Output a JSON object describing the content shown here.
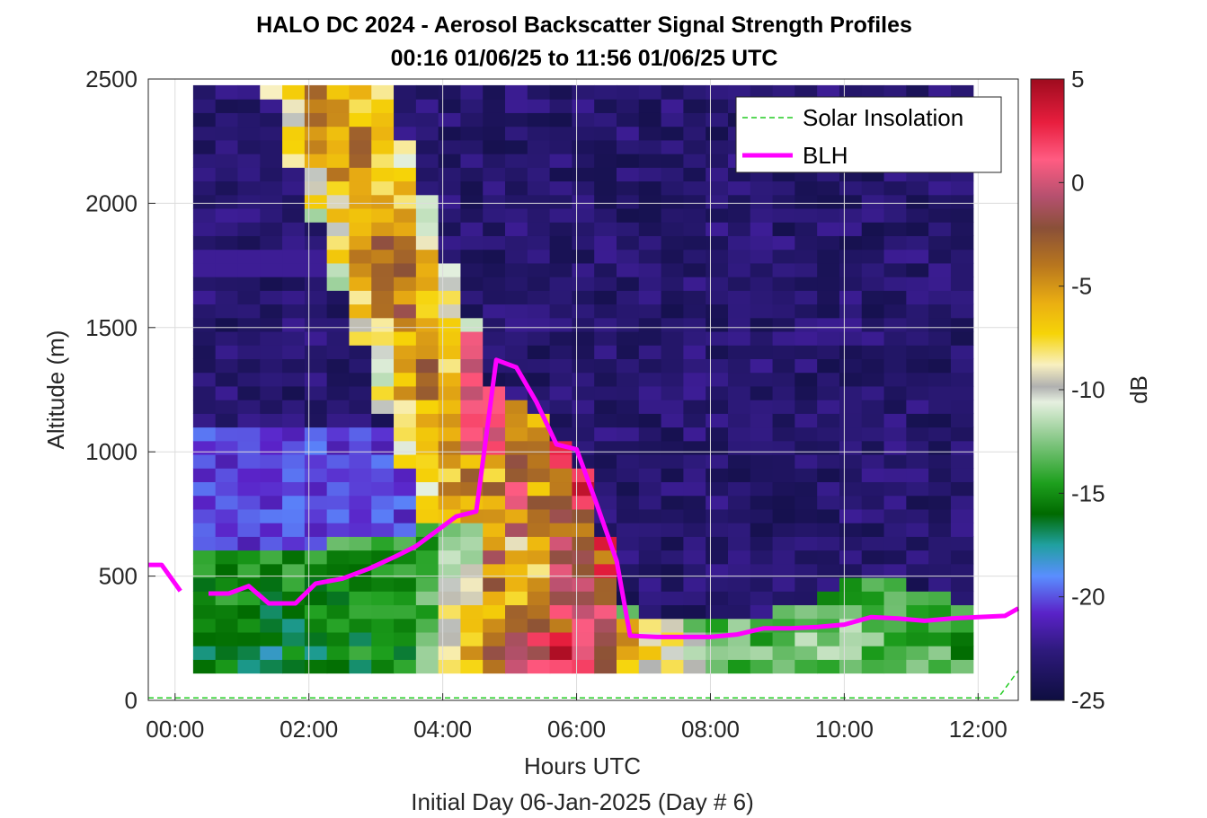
{
  "title_line1": "HALO DC 2024 - Aerosol Backscatter Signal Strength Profiles",
  "title_line2": "00:16 01/06/25 to 11:56 01/06/25  UTC",
  "chart_data": {
    "type": "heatmap",
    "title": "HALO DC 2024 - Aerosol Backscatter Signal Strength Profiles",
    "subtitle": "00:16 01/06/25 to 11:56 01/06/25  UTC",
    "xlabel": "Hours UTC",
    "xlabel2": "Initial Day 06-Jan-2025 (Day # 6)",
    "ylabel": "Altitude (m)",
    "xlim": [
      -0.4,
      12.6
    ],
    "ylim": [
      0,
      2500
    ],
    "x_ticks": [
      0,
      2,
      4,
      6,
      8,
      10,
      12
    ],
    "x_tick_labels": [
      "00:00",
      "02:00",
      "04:00",
      "06:00",
      "08:00",
      "10:00",
      "12:00"
    ],
    "y_ticks": [
      0,
      500,
      1000,
      1500,
      2000,
      2500
    ],
    "y_tick_labels": [
      "0",
      "500",
      "1000",
      "1500",
      "2000",
      "2500"
    ],
    "grid": true,
    "colorbar": {
      "label": "dB",
      "range": [
        -25,
        5
      ],
      "ticks": [
        5,
        0,
        -5,
        -10,
        -15,
        -20,
        -25
      ],
      "tick_labels": [
        "5",
        "0",
        "-5",
        "-10",
        "-15",
        "-20",
        "-25"
      ]
    },
    "heatmap": {
      "x_start": 0.27,
      "x_step": 0.333,
      "n_cols": 35,
      "y_start": 110,
      "y_step": 55,
      "n_rows": 43,
      "note": "cell values in dB estimated from color"
    },
    "legend": {
      "placement": "top-right",
      "entries": [
        {
          "label": "Solar Insolation",
          "color": "#22cc22",
          "style": "dashed"
        },
        {
          "label": "BLH",
          "color": "#ff00ff",
          "style": "solid"
        }
      ]
    },
    "series": [
      {
        "name": "BLH",
        "color": "#ff00ff",
        "x": [
          -0.4,
          -0.2,
          0.08,
          null,
          0.5,
          0.8,
          1.1,
          1.4,
          1.8,
          2.1,
          2.5,
          2.9,
          3.3,
          3.6,
          3.9,
          4.2,
          4.5,
          4.8,
          5.1,
          5.4,
          5.7,
          6.0,
          6.3,
          6.6,
          6.8,
          7.2,
          7.6,
          8.0,
          8.4,
          8.8,
          9.2,
          9.6,
          10.0,
          10.4,
          10.8,
          11.2,
          11.6,
          12.0,
          12.4,
          12.6
        ],
        "y": [
          545,
          545,
          440,
          null,
          430,
          430,
          460,
          390,
          390,
          470,
          490,
          530,
          580,
          620,
          680,
          740,
          760,
          1370,
          1340,
          1200,
          1030,
          1010,
          790,
          560,
          260,
          255,
          255,
          255,
          265,
          290,
          290,
          295,
          305,
          335,
          330,
          320,
          330,
          335,
          340,
          370
        ]
      },
      {
        "name": "Solar Insolation",
        "color": "#22cc22",
        "x": [
          -0.4,
          12.3,
          12.6
        ],
        "y": [
          10,
          10,
          120
        ]
      }
    ]
  }
}
